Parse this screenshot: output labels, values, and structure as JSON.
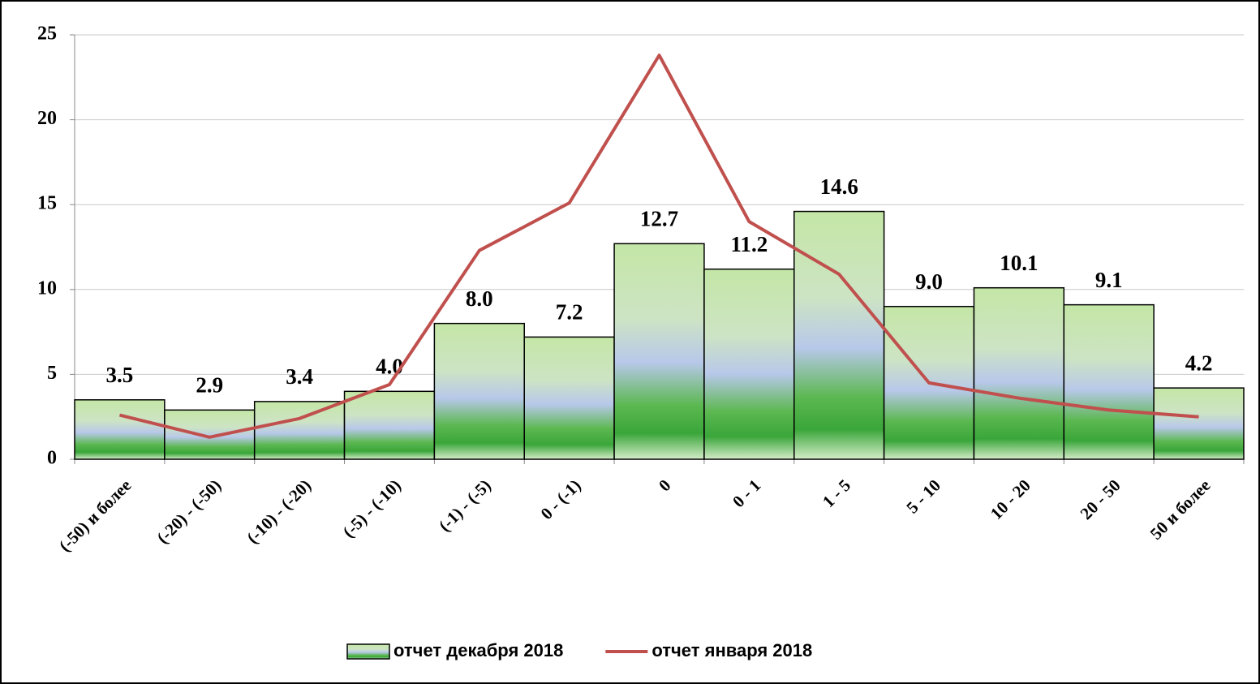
{
  "chart_data": {
    "type": "bar",
    "categories": [
      "(-50) и более",
      "(-20) - (-50)",
      "(-10) - (-20)",
      "(-5) - (-10)",
      "(-1) - (-5)",
      "0 - (-1)",
      "0",
      "0 - 1",
      "1 - 5",
      "5 - 10",
      "10 - 20",
      "20 - 50",
      "50 и более"
    ],
    "series": [
      {
        "name": "отчет декабря 2018",
        "type": "bar",
        "color": "#6cc04a",
        "values": [
          3.5,
          2.9,
          3.4,
          4.0,
          8.0,
          7.2,
          12.7,
          11.2,
          14.6,
          9.0,
          10.1,
          9.1,
          4.2
        ],
        "value_labels": [
          "3.5",
          "2.9",
          "3.4",
          "4.0",
          "8.0",
          "7.2",
          "12.7",
          "11.2",
          "14.6",
          "9.0",
          "10.1",
          "9.1",
          "4.2"
        ]
      },
      {
        "name": "отчет января 2018",
        "type": "line",
        "color": "#c0504d",
        "values": [
          2.6,
          1.3,
          2.4,
          4.4,
          12.3,
          15.1,
          23.8,
          14.0,
          10.9,
          4.5,
          3.6,
          2.9,
          2.5
        ]
      }
    ],
    "ylim": [
      0,
      25
    ],
    "yticks": [
      0,
      5,
      10,
      15,
      20,
      25
    ],
    "grid": true,
    "legend": "bottom"
  }
}
